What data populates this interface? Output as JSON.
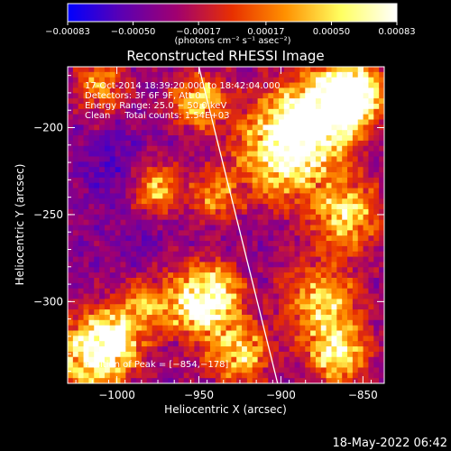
{
  "chart_data": {
    "type": "heatmap",
    "title": "Reconstructed RHESSI Image",
    "xlabel": "Heliocentric X (arcsec)",
    "ylabel": "Heliocentric Y (arcsec)",
    "xlim": [
      -1030,
      -837
    ],
    "ylim": [
      -347,
      -165
    ],
    "x_ticks": [
      -1000,
      -950,
      -900,
      -850
    ],
    "y_ticks": [
      -200,
      -250,
      -300
    ],
    "x_tick_labels": [
      "−1000",
      "−950",
      "−900",
      "−850"
    ],
    "y_tick_labels": [
      "−200",
      "−250",
      "−300"
    ],
    "colorbar": {
      "range": [
        -0.00083,
        0.00083
      ],
      "ticks": [
        -0.00083,
        -0.0005,
        -0.00017,
        0.00017,
        0.0005,
        0.00083
      ],
      "tick_labels": [
        "−0.00083",
        "−0.00050",
        "−0.00017",
        "0.00017",
        "0.00050",
        "0.00083"
      ],
      "unit_label": "(photons cm⁻² s⁻¹ asec⁻²)",
      "colormap": [
        "#0000ff",
        "#5a00b4",
        "#a00070",
        "#e83000",
        "#ff9000",
        "#ffff60",
        "#ffffff"
      ]
    },
    "annotations": {
      "time_range": "17‑Oct‑2014 18:39:20.000 to 18:42:04.000",
      "detectors": "Detectors: 3F 6F 9F, Att 0",
      "energy": "Energy Range: 25.0 − 50.0 keV",
      "clean": "Clean     Total counts: 1.54E+03",
      "peak": "Position of Peak = [−854,−178]"
    },
    "peak": {
      "x": -854,
      "y": -178
    },
    "limb_line": [
      {
        "x": -950,
        "y": -165
      },
      {
        "x": -902,
        "y": -347
      }
    ],
    "hot_regions": [
      {
        "x": -1015,
        "y": -330,
        "r": 22,
        "v": 0.00083
      },
      {
        "x": -1000,
        "y": -320,
        "r": 14,
        "v": 0.0006
      },
      {
        "x": -955,
        "y": -305,
        "r": 22,
        "v": 0.0006
      },
      {
        "x": -940,
        "y": -295,
        "r": 16,
        "v": 0.0005
      },
      {
        "x": -925,
        "y": -330,
        "r": 18,
        "v": 0.0005
      },
      {
        "x": -900,
        "y": -215,
        "r": 28,
        "v": 0.0006
      },
      {
        "x": -885,
        "y": -200,
        "r": 22,
        "v": 0.0007
      },
      {
        "x": -865,
        "y": -185,
        "r": 22,
        "v": 0.00083
      },
      {
        "x": -855,
        "y": -180,
        "r": 14,
        "v": 0.00083
      },
      {
        "x": -860,
        "y": -250,
        "r": 20,
        "v": 0.0006
      },
      {
        "x": -875,
        "y": -300,
        "r": 22,
        "v": 0.0005
      },
      {
        "x": -865,
        "y": -330,
        "r": 18,
        "v": 0.0006
      },
      {
        "x": -950,
        "y": -185,
        "r": 16,
        "v": 0.0005
      },
      {
        "x": -975,
        "y": -235,
        "r": 14,
        "v": 0.0004
      },
      {
        "x": -1010,
        "y": -175,
        "r": 16,
        "v": 0.0003
      },
      {
        "x": -940,
        "y": -240,
        "r": 14,
        "v": 0.00025
      },
      {
        "x": -985,
        "y": -300,
        "r": 12,
        "v": 0.0002
      }
    ],
    "cold_regions": [
      {
        "x": -1005,
        "y": -220,
        "r": 18,
        "v": -0.0006
      },
      {
        "x": -960,
        "y": -320,
        "r": 14,
        "v": -0.0006
      },
      {
        "x": -985,
        "y": -265,
        "r": 14,
        "v": -0.0005
      },
      {
        "x": -920,
        "y": -250,
        "r": 14,
        "v": -0.0004
      },
      {
        "x": -845,
        "y": -220,
        "r": 12,
        "v": -0.0004
      },
      {
        "x": -1020,
        "y": -270,
        "r": 12,
        "v": -0.0004
      },
      {
        "x": -925,
        "y": -180,
        "r": 10,
        "v": -0.0003
      },
      {
        "x": -890,
        "y": -280,
        "r": 12,
        "v": -0.0003
      }
    ]
  },
  "footer": {
    "timestamp": "18‑May‑2022 06:42"
  }
}
